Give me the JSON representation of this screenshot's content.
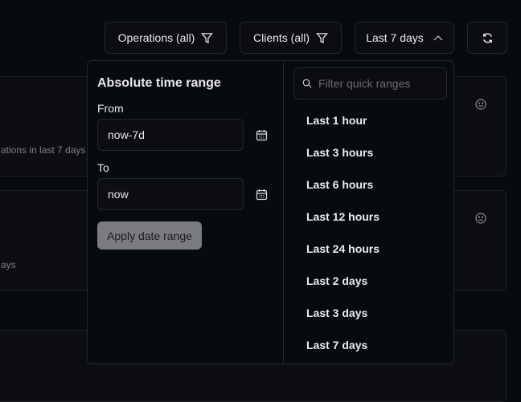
{
  "toolbar": {
    "operations": "Operations (all)",
    "clients": "Clients (all)",
    "range": "Last 7 days"
  },
  "cards": [
    {
      "subtitle": "ations in last 7 days"
    },
    {
      "subtitle": "ays"
    }
  ],
  "popup": {
    "heading": "Absolute time range",
    "from_label": "From",
    "from_value": "now-7d",
    "to_label": "To",
    "to_value": "now",
    "apply": "Apply date range",
    "search_placeholder": "Filter quick ranges",
    "quick_ranges": [
      "Last 1 hour",
      "Last 3 hours",
      "Last 6 hours",
      "Last 12 hours",
      "Last 24 hours",
      "Last 2 days",
      "Last 3 days",
      "Last 7 days"
    ]
  }
}
